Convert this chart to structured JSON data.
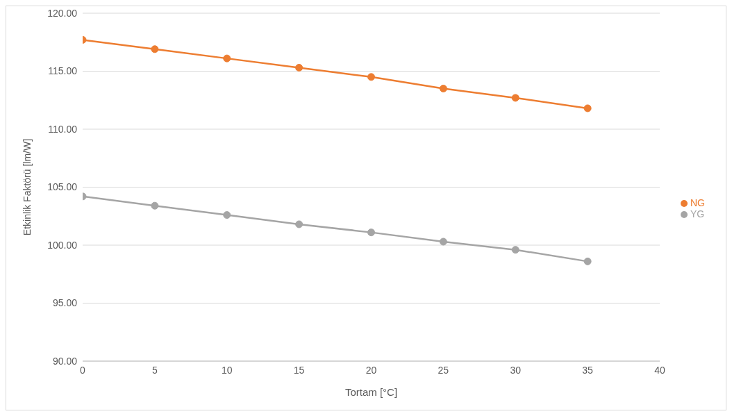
{
  "chart_data": {
    "type": "line",
    "xlabel": "Tortam [°C]",
    "ylabel": "Etkinlik Faktörü [lm/W]",
    "x": [
      0,
      5,
      10,
      15,
      20,
      25,
      30,
      35
    ],
    "series": [
      {
        "name": "NG",
        "color": "#ed7d31",
        "values": [
          117.7,
          116.9,
          116.1,
          115.3,
          114.5,
          113.5,
          112.7,
          111.8
        ]
      },
      {
        "name": "YG",
        "color": "#a5a5a5",
        "values": [
          104.2,
          103.4,
          102.6,
          101.8,
          101.1,
          100.3,
          99.6,
          98.6
        ]
      }
    ],
    "xlim": [
      0,
      40
    ],
    "xticks": [
      0,
      5,
      10,
      15,
      20,
      25,
      30,
      35,
      40
    ],
    "ylim": [
      90,
      120
    ],
    "yticks": [
      {
        "value": 90,
        "label": "90.00"
      },
      {
        "value": 95,
        "label": "95.00"
      },
      {
        "value": 100,
        "label": "100.00"
      },
      {
        "value": 105,
        "label": "105.00"
      },
      {
        "value": 110,
        "label": "110.00"
      },
      {
        "value": 115,
        "label": "115.00"
      },
      {
        "value": 120,
        "label": "120.00"
      }
    ],
    "grid": "y",
    "legend": "right",
    "marker": "circle",
    "line_style": "solid"
  }
}
